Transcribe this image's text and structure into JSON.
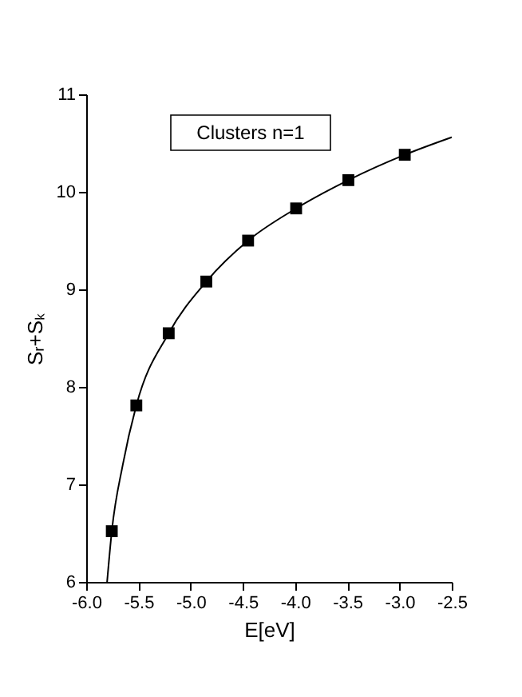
{
  "chart_data": {
    "type": "scatter",
    "xlabel": "E[eV]",
    "ylabel": "Sᵣ+Sₖ",
    "annotations": [
      "Clusters   n=1"
    ],
    "xlim": [
      -6.0,
      -2.5
    ],
    "xticks": [
      {
        "value": -6,
        "label": "-6.0"
      },
      {
        "value": -5.5,
        "label": "-5.5"
      },
      {
        "value": -5,
        "label": "-5.0"
      },
      {
        "value": -4.5,
        "label": "-4.5"
      },
      {
        "value": -4,
        "label": "-4.0"
      },
      {
        "value": -3.5,
        "label": "-3.5"
      },
      {
        "value": -3,
        "label": "-3.0"
      },
      {
        "value": -2.5,
        "label": "-2.5"
      }
    ],
    "ylim": [
      6,
      11
    ],
    "yticks": [
      6,
      7,
      8,
      9,
      10,
      11
    ],
    "grid": false,
    "series": [
      {
        "marker": "square",
        "color": "#000000",
        "x": [
          -5.755,
          -5.52,
          -5.21,
          -4.85,
          -4.45,
          -3.99,
          -3.49,
          -2.95
        ],
        "values": [
          6.52,
          7.81,
          8.55,
          9.08,
          9.5,
          9.83,
          10.12,
          10.38
        ]
      },
      {
        "type": "line",
        "marker": "none",
        "line_style": "solid",
        "color": "#000000",
        "x": [
          -5.8,
          -5.755,
          -5.65,
          -5.52,
          -5.21,
          -4.85,
          -4.45,
          -3.99,
          -3.49,
          -2.95,
          -2.5
        ],
        "values": [
          6.0,
          6.52,
          7.2,
          7.81,
          8.55,
          9.08,
          9.5,
          9.83,
          10.12,
          10.38,
          10.56
        ]
      }
    ]
  }
}
